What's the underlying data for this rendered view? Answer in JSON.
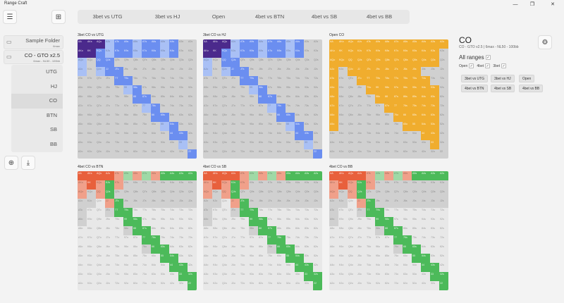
{
  "window": {
    "title": "Range Craft"
  },
  "tabs": [
    "3bet vs UTG",
    "3bet vs HJ",
    "Open",
    "4bet vs BTN",
    "4bet vs SB",
    "4bet vs BB"
  ],
  "sidebar": {
    "folder": {
      "name": "Sample Folder",
      "sub": "6max"
    },
    "range": {
      "name": "CO - GTO x2.5",
      "sub": "6max - NL50 - 100bb"
    },
    "positions": [
      "UTG",
      "HJ",
      "CO",
      "BTN",
      "SB",
      "BB"
    ],
    "active_position": "CO"
  },
  "info": {
    "title": "CO",
    "subtitle": "CO - GTO x2.5 | 6max - NL50 - 100bb",
    "all_ranges_label": "All ranges",
    "filters": [
      "Open",
      "4bet",
      "3bet"
    ],
    "chips": [
      "3bet vs UTG",
      "3bet vs HJ",
      "Open",
      "4bet vs BTN",
      "4bet vs SB",
      "4bet vs BB"
    ]
  },
  "panels": [
    {
      "title": "3bet CO vs UTG",
      "scheme": "3bet"
    },
    {
      "title": "3bet CO vs HJ",
      "scheme": "3bet"
    },
    {
      "title": "Open CO",
      "scheme": "open"
    },
    {
      "title": "4bet CO vs BTN",
      "scheme": "4bet"
    },
    {
      "title": "4bet CO vs SB",
      "scheme": "4bet"
    },
    {
      "title": "4bet CO vs BB",
      "scheme": "4bet"
    }
  ],
  "ranks": [
    "A",
    "K",
    "Q",
    "J",
    "T",
    "9",
    "8",
    "7",
    "6",
    "5",
    "4",
    "3",
    "2"
  ],
  "colors": {
    "fold": "#d0d0d0",
    "empty": "#e8e8e8",
    "purple": "#4b2a8c",
    "blue": "#6b8ef0",
    "lightblue": "#a9c0f5",
    "orange": "#f0ad2e",
    "red": "#e8603c",
    "salmon": "#f0a08a",
    "green": "#4cba5a",
    "lightgreen": "#9fd9a6"
  }
}
